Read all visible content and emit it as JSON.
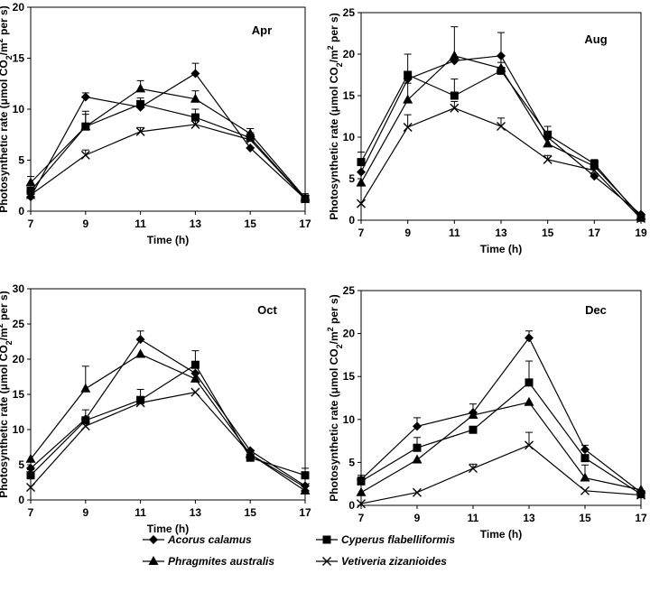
{
  "ylabel_main": "Photosynthetic rate (μmol CO",
  "ylabel_sub": "2",
  "ylabel_mid": "/m",
  "ylabel_sup": "2",
  "ylabel_tail": " per s)",
  "xlabel": "Time (h)",
  "legend": [
    {
      "name": "Acorus calamus",
      "marker": "diamond"
    },
    {
      "name": "Cyperus flabelliformis",
      "marker": "square"
    },
    {
      "name": "Phragmites australis",
      "marker": "triangle"
    },
    {
      "name": "Vetiveria zizanioides",
      "marker": "x"
    }
  ],
  "chart_data": [
    {
      "type": "line",
      "title": "Apr",
      "xlabel": "Time (h)",
      "xticks": [
        7,
        9,
        11,
        13,
        15,
        17
      ],
      "xlim": [
        7,
        17
      ],
      "ylim": [
        0,
        20
      ],
      "yticks": [
        0,
        5,
        10,
        15,
        20
      ],
      "series": [
        {
          "name": "Acorus calamus",
          "marker": "diamond",
          "x": [
            7,
            9,
            11,
            13,
            15,
            17
          ],
          "y": [
            1.4,
            11.2,
            10.2,
            13.5,
            6.2,
            1.2
          ],
          "err": [
            0,
            0.4,
            0.4,
            1.0,
            0,
            0
          ]
        },
        {
          "name": "Cyperus flabelliformis",
          "marker": "square",
          "x": [
            7,
            9,
            11,
            13,
            15,
            17
          ],
          "y": [
            2.0,
            8.3,
            10.5,
            9.2,
            7.2,
            1.2
          ],
          "err": [
            0.5,
            1.5,
            0.6,
            0.8,
            0.5,
            0.5
          ]
        },
        {
          "name": "Phragmites australis",
          "marker": "triangle",
          "x": [
            7,
            9,
            11,
            13,
            15,
            17
          ],
          "y": [
            2.8,
            8.3,
            12.0,
            11.0,
            7.6,
            1.3
          ],
          "err": [
            0.6,
            1.2,
            0.8,
            0.8,
            0.5,
            0.4
          ]
        },
        {
          "name": "Vetiveria zizanioides",
          "marker": "x",
          "x": [
            7,
            9,
            11,
            13,
            15,
            17
          ],
          "y": [
            1.6,
            5.5,
            7.8,
            8.5,
            7.0,
            1.2
          ],
          "err": [
            0,
            0.5,
            0.4,
            0.5,
            0.5,
            0
          ]
        }
      ]
    },
    {
      "type": "line",
      "title": "Aug",
      "xlabel": "Time (h)",
      "xticks": [
        7,
        9,
        11,
        13,
        15,
        17,
        19
      ],
      "xlim": [
        7,
        19
      ],
      "ylim": [
        0,
        25
      ],
      "yticks": [
        0,
        5,
        10,
        15,
        20,
        25
      ],
      "series": [
        {
          "name": "Acorus calamus",
          "marker": "diamond",
          "x": [
            7,
            9,
            11,
            13,
            15,
            17,
            19
          ],
          "y": [
            5.8,
            17.0,
            19.2,
            19.8,
            10.0,
            5.3,
            0.7
          ],
          "err": [
            0,
            0,
            0,
            0,
            0,
            0,
            0
          ]
        },
        {
          "name": "Cyperus flabelliformis",
          "marker": "square",
          "x": [
            7,
            9,
            11,
            13,
            15,
            17,
            19
          ],
          "y": [
            7.0,
            17.5,
            15.0,
            18.0,
            10.3,
            6.8,
            0.3
          ],
          "err": [
            1.2,
            2.5,
            2.0,
            1.0,
            1.0,
            0.5,
            0
          ]
        },
        {
          "name": "Phragmites australis",
          "marker": "triangle",
          "x": [
            7,
            9,
            11,
            13,
            15,
            17,
            19
          ],
          "y": [
            4.5,
            14.5,
            19.8,
            18.3,
            9.2,
            6.5,
            0.5
          ],
          "err": [
            0,
            2.0,
            3.5,
            4.3,
            0,
            0,
            0
          ]
        },
        {
          "name": "Vetiveria zizanioides",
          "marker": "x",
          "x": [
            7,
            9,
            11,
            13,
            15,
            17,
            19
          ],
          "y": [
            2.0,
            11.2,
            13.5,
            11.3,
            7.3,
            6.0,
            0.2
          ],
          "err": [
            0,
            1.5,
            0.8,
            1.0,
            0.5,
            0,
            0
          ]
        }
      ]
    },
    {
      "type": "line",
      "title": "Oct",
      "xlabel": "Time (h)",
      "xticks": [
        7,
        9,
        11,
        13,
        15,
        17
      ],
      "xlim": [
        7,
        17
      ],
      "ylim": [
        0,
        30
      ],
      "yticks": [
        0,
        5,
        10,
        15,
        20,
        25,
        30
      ],
      "series": [
        {
          "name": "Acorus calamus",
          "marker": "diamond",
          "x": [
            7,
            9,
            11,
            13,
            15,
            17
          ],
          "y": [
            4.5,
            11.5,
            22.8,
            18.0,
            7.0,
            2.0
          ],
          "err": [
            0,
            0,
            1.2,
            0,
            0,
            0
          ]
        },
        {
          "name": "Cyperus flabelliformis",
          "marker": "square",
          "x": [
            7,
            9,
            11,
            13,
            15,
            17
          ],
          "y": [
            3.5,
            11.3,
            14.2,
            19.2,
            6.0,
            3.5
          ],
          "err": [
            0.8,
            1.5,
            1.5,
            2.0,
            0.8,
            1.0
          ]
        },
        {
          "name": "Phragmites australis",
          "marker": "triangle",
          "x": [
            7,
            9,
            11,
            13,
            15,
            17
          ],
          "y": [
            5.8,
            15.8,
            20.7,
            17.2,
            6.5,
            1.3
          ],
          "err": [
            0,
            3.2,
            0,
            0,
            0,
            0
          ]
        },
        {
          "name": "Vetiveria zizanioides",
          "marker": "x",
          "x": [
            7,
            9,
            11,
            13,
            15,
            17
          ],
          "y": [
            1.8,
            10.5,
            13.8,
            15.3,
            6.5,
            1.8
          ],
          "err": [
            0,
            0,
            0,
            0,
            0,
            0
          ]
        }
      ]
    },
    {
      "type": "line",
      "title": "Dec",
      "xlabel": "Time (h)",
      "xticks": [
        7,
        9,
        11,
        13,
        15,
        17
      ],
      "xlim": [
        7,
        17
      ],
      "ylim": [
        0,
        25
      ],
      "yticks": [
        0,
        5,
        10,
        15,
        20,
        25
      ],
      "series": [
        {
          "name": "Acorus calamus",
          "marker": "diamond",
          "x": [
            7,
            9,
            11,
            13,
            15,
            17
          ],
          "y": [
            3.0,
            9.2,
            10.8,
            19.5,
            6.5,
            1.5
          ],
          "err": [
            0.5,
            1.0,
            1.0,
            0.8,
            0.5,
            0
          ]
        },
        {
          "name": "Cyperus flabelliformis",
          "marker": "square",
          "x": [
            7,
            9,
            11,
            13,
            15,
            17
          ],
          "y": [
            2.8,
            6.7,
            8.8,
            14.3,
            5.5,
            1.3
          ],
          "err": [
            0.5,
            1.2,
            0,
            2.5,
            1.0,
            0
          ]
        },
        {
          "name": "Phragmites australis",
          "marker": "triangle",
          "x": [
            7,
            9,
            11,
            13,
            15,
            17
          ],
          "y": [
            1.5,
            5.3,
            10.5,
            12.0,
            3.2,
            1.8
          ],
          "err": [
            0,
            0,
            0,
            0,
            1.5,
            0
          ]
        },
        {
          "name": "Vetiveria zizanioides",
          "marker": "x",
          "x": [
            7,
            9,
            11,
            13,
            15,
            17
          ],
          "y": [
            0.2,
            1.5,
            4.3,
            7.0,
            1.7,
            1.2
          ],
          "err": [
            0,
            0,
            0.5,
            1.5,
            0,
            0
          ]
        }
      ]
    }
  ]
}
